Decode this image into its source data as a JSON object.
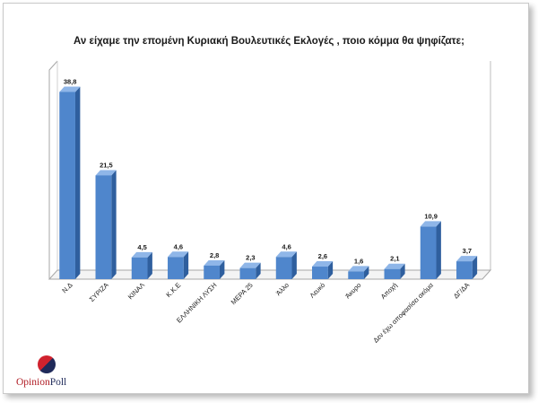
{
  "chart_data": {
    "type": "bar",
    "title": "Αν είχαμε την επομένη Κυριακή Βουλευτικές Εκλογές , ποιο κόμμα θα ψηφίζατε;",
    "categories": [
      "Ν.Δ",
      "ΣΥΡΙΖΑ",
      "ΚΙΝΑΛ",
      "Κ.Κ.Ε",
      "ΕΛΛΗΝΙΚΗ ΛΥΣΗ",
      "ΜΕΡΑ 25",
      "Άλλο",
      "Λευκό",
      "Άκυρο",
      "Αποχή",
      "Δεν έχω αποφασίσει ακόμα",
      "ΔΓ/ΔΑ"
    ],
    "values": [
      38.8,
      21.5,
      4.5,
      4.6,
      2.8,
      2.3,
      4.6,
      2.6,
      1.6,
      2.1,
      10.9,
      3.7
    ],
    "value_labels": [
      "38,8",
      "21,5",
      "4,5",
      "4,6",
      "2,8",
      "2,3",
      "4,6",
      "2,6",
      "1,6",
      "2,1",
      "10,9",
      "3,7"
    ],
    "xlabel": "",
    "ylabel": "",
    "ylim": [
      0,
      40
    ],
    "grid": false,
    "legend": "none",
    "bar_color": "#4f86cc"
  },
  "logo": {
    "word1": "Opinion",
    "word2": "Poll"
  }
}
